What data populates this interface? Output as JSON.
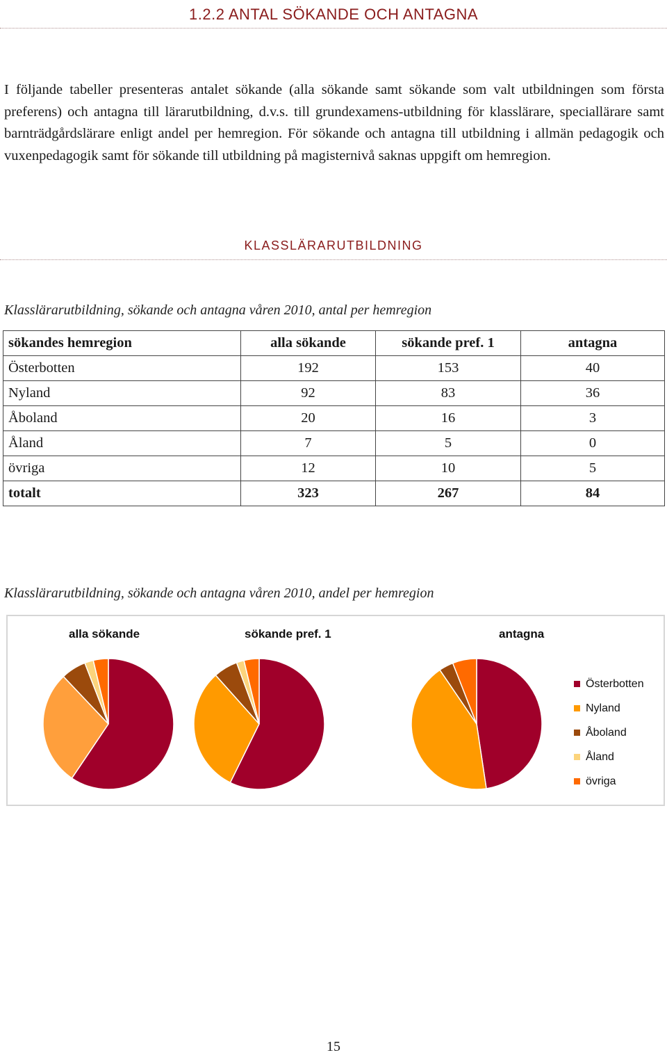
{
  "section_heading": "1.2.2 ANTAL SÖKANDE OCH ANTAGNA",
  "intro_text": "I följande tabeller presenteras antalet sökande (alla sökande samt sökande som valt utbildningen som första preferens) och antagna till lärarutbildning, d.v.s. till grundexamens-utbildning för klasslärare, speciallärare samt barnträdgårdslärare enligt andel per hemregion. För sökande och antagna till utbildning i allmän pedagogik och vuxenpedagogik samt för sökande till utbildning på magisternivå saknas uppgift om hemregion.",
  "subsection_heading": "KLASSLÄRARUTBILDNING",
  "table": {
    "caption": "Klasslärarutbildning, sökande och antagna våren 2010, antal per hemregion",
    "headers": [
      "sökandes hemregion",
      "alla sökande",
      "sökande pref. 1",
      "antagna"
    ],
    "rows": [
      [
        "Österbotten",
        "192",
        "153",
        "40"
      ],
      [
        "Nyland",
        "92",
        "83",
        "36"
      ],
      [
        "Åboland",
        "20",
        "16",
        "3"
      ],
      [
        "Åland",
        "7",
        "5",
        "0"
      ],
      [
        "övriga",
        "12",
        "10",
        "5"
      ],
      [
        "totalt",
        "323",
        "267",
        "84"
      ]
    ]
  },
  "charts_caption": "Klasslärarutbildning, sökande och antagna våren 2010, andel per hemregion",
  "chart_data": {
    "type": "pie",
    "categories": [
      "Österbotten",
      "Nyland",
      "Åboland",
      "Åland",
      "övriga"
    ],
    "colors": [
      "#a0002a",
      "#ff9a00",
      "#9b4a0c",
      "#fcd47c",
      "#ff6a00"
    ],
    "series": [
      {
        "name": "alla sökande",
        "values": [
          192,
          92,
          20,
          7,
          12
        ],
        "colors": [
          "#a0002a",
          "#ff9f3c",
          "#9b4a0c",
          "#fcd47c",
          "#ff6a00"
        ]
      },
      {
        "name": "sökande pref. 1",
        "values": [
          153,
          83,
          16,
          5,
          10
        ]
      },
      {
        "name": "antagna",
        "values": [
          40,
          36,
          3,
          0,
          5
        ]
      }
    ],
    "legend_position": "right"
  },
  "page_number": "15"
}
